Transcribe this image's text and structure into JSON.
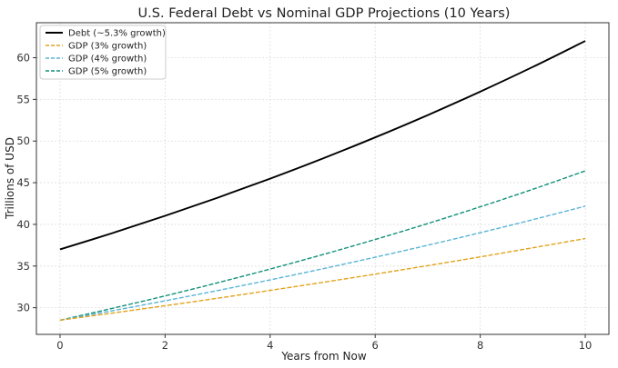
{
  "chart_data": {
    "type": "line",
    "title": "U.S. Federal Debt vs Nominal GDP Projections (10 Years)",
    "xlabel": "Years from Now",
    "ylabel": "Trillions of USD",
    "xlim": [
      -0.45,
      10.45
    ],
    "ylim": [
      26.8,
      64.2
    ],
    "xticks": [
      0,
      2,
      4,
      6,
      8,
      10
    ],
    "yticks": [
      30,
      35,
      40,
      45,
      50,
      55,
      60
    ],
    "grid": true,
    "legend_position": "top-left",
    "x": [
      0,
      1,
      2,
      3,
      4,
      5,
      6,
      7,
      8,
      9,
      10
    ],
    "series": [
      {
        "name": "Debt (~5.3% growth)",
        "color": "#000000",
        "style": "solid",
        "values": [
          37.0,
          38.96,
          41.03,
          43.2,
          45.49,
          47.9,
          50.44,
          53.11,
          55.93,
          58.89,
          62.01
        ]
      },
      {
        "name": "GDP (3% growth)",
        "color": "#e3a21a",
        "style": "dashed",
        "values": [
          28.5,
          29.36,
          30.24,
          31.14,
          32.08,
          33.04,
          34.03,
          35.05,
          36.1,
          37.19,
          38.3
        ]
      },
      {
        "name": "GDP (4% growth)",
        "color": "#5ab4d6",
        "style": "dashed",
        "values": [
          28.5,
          29.64,
          30.83,
          32.06,
          33.34,
          34.67,
          36.06,
          37.5,
          39.0,
          40.56,
          42.19
        ]
      },
      {
        "name": "GDP (5% growth)",
        "color": "#13917a",
        "style": "dashed",
        "values": [
          28.5,
          29.93,
          31.42,
          32.99,
          34.64,
          36.37,
          38.19,
          40.1,
          42.11,
          44.21,
          46.42
        ]
      }
    ]
  }
}
